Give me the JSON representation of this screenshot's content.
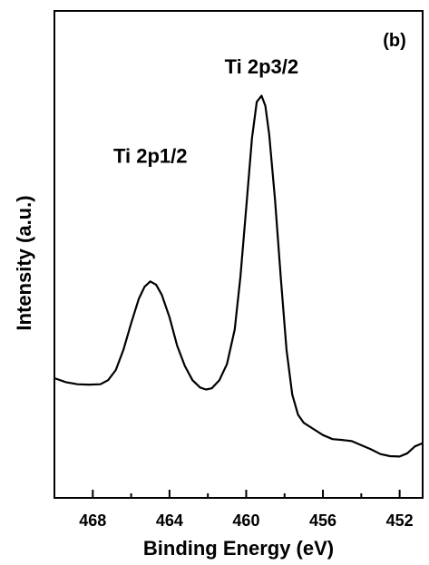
{
  "chart_data": {
    "type": "line",
    "xlabel": "Binding Energy (eV)",
    "ylabel": "Intensity (a.u.)",
    "panel_label": "(b)",
    "x_reversed": true,
    "xlim": [
      470.0,
      450.8
    ],
    "ylim": [
      0,
      100
    ],
    "x_ticks": [
      468,
      464,
      460,
      456,
      452
    ],
    "x_tick_labels": [
      "468",
      "464",
      "460",
      "456",
      "452"
    ],
    "grid": false,
    "legend": "none",
    "annotations": [
      {
        "text": "Ti 2p1/2",
        "x": 465.0,
        "y": 76
      },
      {
        "text": "Ti 2p3/2",
        "x": 459.2,
        "y": 98
      }
    ],
    "series": [
      {
        "color": "#000000",
        "points": [
          [
            470.0,
            23.0
          ],
          [
            469.4,
            22.0
          ],
          [
            468.8,
            21.5
          ],
          [
            468.2,
            21.4
          ],
          [
            467.6,
            21.5
          ],
          [
            467.2,
            22.5
          ],
          [
            466.8,
            25.0
          ],
          [
            466.4,
            30.0
          ],
          [
            466.0,
            36.5
          ],
          [
            465.6,
            42.5
          ],
          [
            465.3,
            45.5
          ],
          [
            465.0,
            46.8
          ],
          [
            464.7,
            46.0
          ],
          [
            464.4,
            43.5
          ],
          [
            464.0,
            38.0
          ],
          [
            463.6,
            31.0
          ],
          [
            463.2,
            26.0
          ],
          [
            462.8,
            22.5
          ],
          [
            462.4,
            20.7
          ],
          [
            462.1,
            20.2
          ],
          [
            461.8,
            20.5
          ],
          [
            461.4,
            22.5
          ],
          [
            461.0,
            26.5
          ],
          [
            460.6,
            35.0
          ],
          [
            460.3,
            48.0
          ],
          [
            460.0,
            65.0
          ],
          [
            459.7,
            82.0
          ],
          [
            459.45,
            91.0
          ],
          [
            459.2,
            92.5
          ],
          [
            459.0,
            90.0
          ],
          [
            458.8,
            83.0
          ],
          [
            458.5,
            67.0
          ],
          [
            458.2,
            48.0
          ],
          [
            457.9,
            30.0
          ],
          [
            457.6,
            19.0
          ],
          [
            457.3,
            14.0
          ],
          [
            457.0,
            12.0
          ],
          [
            456.5,
            10.5
          ],
          [
            456.0,
            9.0
          ],
          [
            455.5,
            8.0
          ],
          [
            455.0,
            7.8
          ],
          [
            454.5,
            7.5
          ],
          [
            454.0,
            6.5
          ],
          [
            453.5,
            5.5
          ],
          [
            453.0,
            4.3
          ],
          [
            452.5,
            3.8
          ],
          [
            452.0,
            3.7
          ],
          [
            451.6,
            4.5
          ],
          [
            451.2,
            6.2
          ],
          [
            450.8,
            7.0
          ]
        ]
      }
    ]
  }
}
